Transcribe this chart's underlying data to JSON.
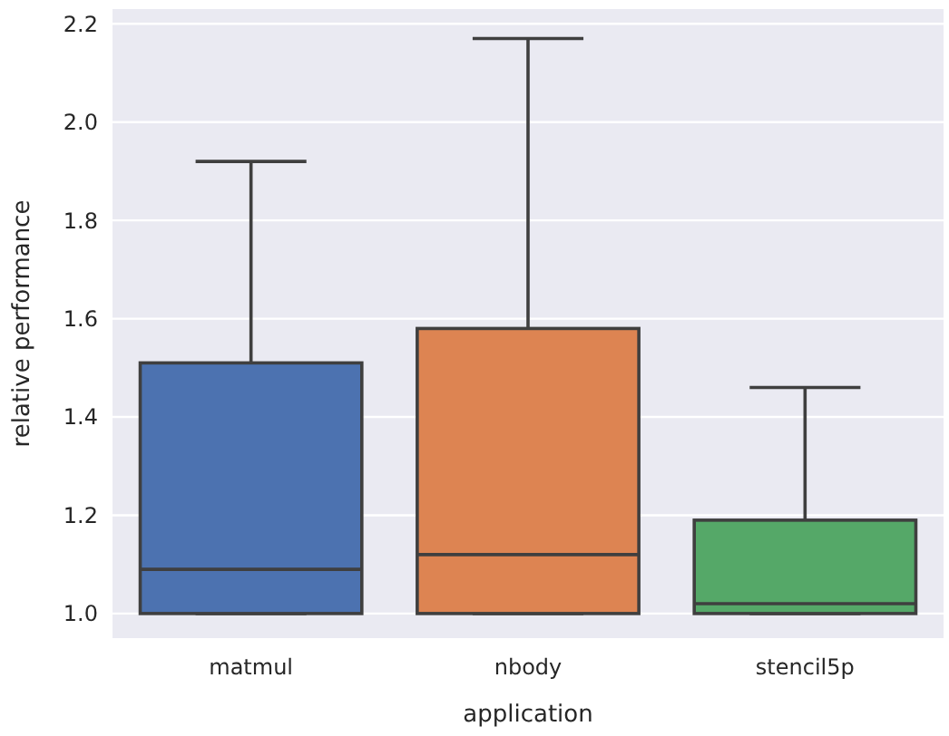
{
  "chart_data": {
    "type": "box",
    "xlabel": "application",
    "ylabel": "relative performance",
    "categories": [
      "matmul",
      "nbody",
      "stencil5p"
    ],
    "colors": [
      "#4c72b0",
      "#dd8452",
      "#55a868"
    ],
    "boxes": [
      {
        "low": 1.0,
        "q1": 1.0,
        "median": 1.09,
        "q3": 1.51,
        "high": 1.92
      },
      {
        "low": 1.0,
        "q1": 1.0,
        "median": 1.12,
        "q3": 1.58,
        "high": 2.17
      },
      {
        "low": 1.0,
        "q1": 1.0,
        "median": 1.02,
        "q3": 1.19,
        "high": 1.46
      }
    ],
    "ylim": [
      0.95,
      2.23
    ],
    "yticks": [
      {
        "value": 1.0,
        "label": "1.0"
      },
      {
        "value": 1.2,
        "label": "1.2"
      },
      {
        "value": 1.4,
        "label": "1.4"
      },
      {
        "value": 1.6,
        "label": "1.6"
      },
      {
        "value": 1.8,
        "label": "1.8"
      },
      {
        "value": 2.0,
        "label": "2.0"
      },
      {
        "value": 2.2,
        "label": "2.2"
      }
    ],
    "grid": "y"
  }
}
